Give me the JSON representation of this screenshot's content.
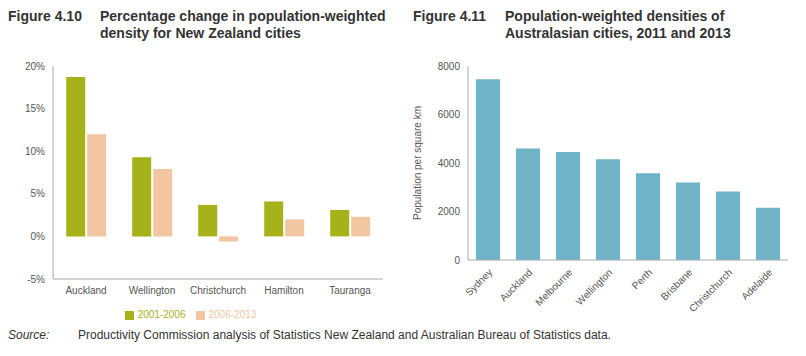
{
  "chart_data": [
    {
      "type": "bar",
      "label": "Figure 4.10",
      "title": "Percentage change in population-weighted density for New Zealand cities",
      "categories": [
        "Auckland",
        "Wellington",
        "Christchurch",
        "Hamilton",
        "Tauranga"
      ],
      "series": [
        {
          "name": "2001-2006",
          "color": "#a6b21a",
          "values": [
            18.7,
            9.3,
            3.7,
            4.1,
            3.1
          ]
        },
        {
          "name": "2006-2013",
          "color": "#f2c6a0",
          "values": [
            12.0,
            7.9,
            -0.6,
            2.0,
            2.3
          ]
        }
      ],
      "ylim": [
        -5,
        20
      ],
      "yticks": [
        {
          "value": -5,
          "label": "-5%"
        },
        {
          "value": 0,
          "label": "0%"
        },
        {
          "value": 5,
          "label": "5%"
        },
        {
          "value": 10,
          "label": "10%"
        },
        {
          "value": 15,
          "label": "15%"
        },
        {
          "value": 20,
          "label": "20%"
        }
      ],
      "grid": false,
      "legend": "bottom"
    },
    {
      "type": "bar",
      "label": "Figure 4.11",
      "title": "Population-weighted densities of Australasian cities, 2011 and 2013",
      "y_label": "Population per square km",
      "categories": [
        "Sydney",
        "Auckland",
        "Melbourne",
        "Wellington",
        "Perth",
        "Brisbane",
        "Christchurch",
        "Adelaide"
      ],
      "values": [
        7450,
        4600,
        4450,
        4150,
        3580,
        3200,
        2820,
        2150
      ],
      "color": "#6fb3c8",
      "ylim": [
        0,
        8000
      ],
      "yticks": [
        0,
        2000,
        4000,
        6000,
        8000
      ],
      "grid": false
    }
  ],
  "source_label": "Source:",
  "source": "Productivity Commission analysis of Statistics New Zealand and Australian Bureau of Statistics data."
}
